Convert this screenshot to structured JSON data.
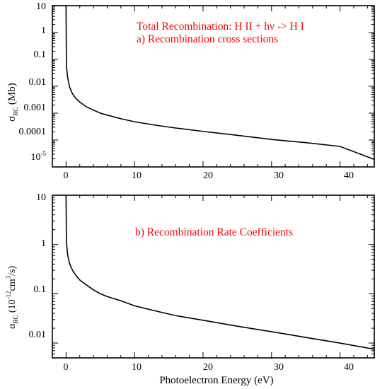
{
  "chart_data": [
    {
      "type": "line",
      "panel_label": "a)",
      "annotation_line1": "Total Recombination: H II + hν -> H I",
      "annotation_line2": "a) Recombination cross sections",
      "ylabel_main": "σ",
      "ylabel_sub": "RC",
      "ylabel_unit": " (Mb)",
      "xlim": [
        -2,
        45
      ],
      "ylim": [
        1e-05,
        10
      ],
      "yscale": "log",
      "x_ticks": [
        "0",
        "10",
        "20",
        "30",
        "40"
      ],
      "y_ticks": [
        "10",
        "1",
        "0.1",
        "0.01",
        "0.001",
        "0.0001"
      ],
      "y_tick_last_base": "10",
      "y_tick_last_exp": "-5",
      "line_color": "#000000",
      "annotation_color": "#ff0000",
      "series": [
        {
          "x": [
            0.0,
            0.05,
            0.1,
            0.2,
            0.3,
            0.5,
            0.8,
            1,
            1.5,
            2,
            3,
            4,
            5,
            6,
            8,
            10,
            13,
            16,
            20,
            25,
            30,
            35,
            40,
            45
          ],
          "values": [
            10,
            0.08,
            0.045,
            0.025,
            0.017,
            0.0098,
            0.0062,
            0.005,
            0.0034,
            0.0026,
            0.0017,
            0.0013,
            0.001,
            0.00085,
            0.00062,
            0.00048,
            0.00036,
            0.00028,
            0.00021,
            0.00015,
            0.000105,
            8e-05,
            5.8e-05,
            1.9e-05
          ]
        }
      ]
    },
    {
      "type": "line",
      "panel_label": "b)",
      "annotation_line1": "b) Recombination Rate Coefficients",
      "ylabel_main": "α",
      "ylabel_sub": "RC",
      "ylabel_unit_pre": " (10",
      "ylabel_unit_exp1": "-12",
      "ylabel_unit_mid": "cm",
      "ylabel_unit_exp2": "3",
      "ylabel_unit_post": "/s)",
      "xlabel": "Photoelectron Energy (eV)",
      "xlim": [
        -2,
        45
      ],
      "ylim": [
        0.005,
        10
      ],
      "yscale": "log",
      "x_ticks": [
        "0",
        "10",
        "20",
        "30",
        "40"
      ],
      "y_ticks": [
        "10",
        "1",
        "0.1",
        "0.01"
      ],
      "line_color": "#000000",
      "annotation_color": "#ff0000",
      "series": [
        {
          "x": [
            0.0,
            0.05,
            0.1,
            0.2,
            0.3,
            0.5,
            0.8,
            1,
            1.5,
            2,
            3,
            4,
            5,
            6,
            8,
            10,
            13,
            16,
            20,
            25,
            30,
            35,
            40,
            45
          ],
          "values": [
            10,
            1.3,
            0.95,
            0.67,
            0.55,
            0.42,
            0.33,
            0.29,
            0.23,
            0.19,
            0.15,
            0.12,
            0.1,
            0.088,
            0.072,
            0.057,
            0.045,
            0.036,
            0.029,
            0.022,
            0.017,
            0.013,
            0.01,
            0.0075
          ]
        }
      ]
    }
  ]
}
